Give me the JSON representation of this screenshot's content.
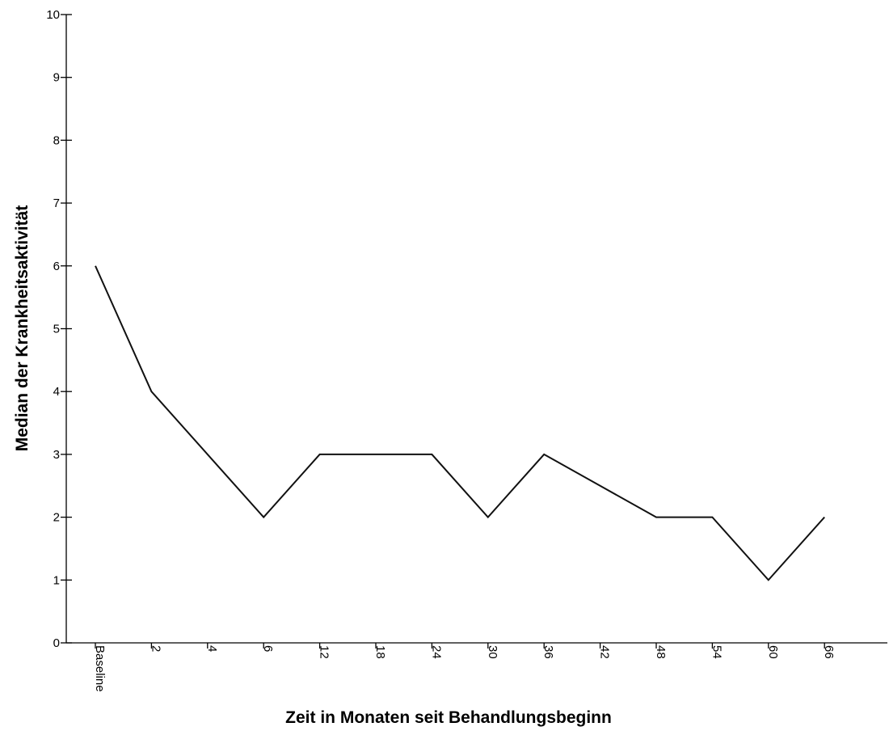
{
  "chart_data": {
    "type": "line",
    "title": "",
    "xlabel": "Zeit in Monaten seit Behandlungsbeginn",
    "ylabel": "Median der Krankheitsaktivität",
    "categories": [
      "Baseline",
      "2",
      "4",
      "6",
      "12",
      "18",
      "24",
      "30",
      "36",
      "42",
      "48",
      "54",
      "60",
      "66"
    ],
    "values": [
      6,
      4,
      3,
      2,
      3,
      3,
      3,
      2,
      3,
      2.5,
      2,
      2,
      1,
      2
    ],
    "ylim": [
      0,
      10
    ],
    "yticks": [
      0,
      1,
      2,
      3,
      4,
      5,
      6,
      7,
      8,
      9,
      10
    ],
    "grid": false,
    "legend": "none",
    "line_color": "#111111"
  }
}
